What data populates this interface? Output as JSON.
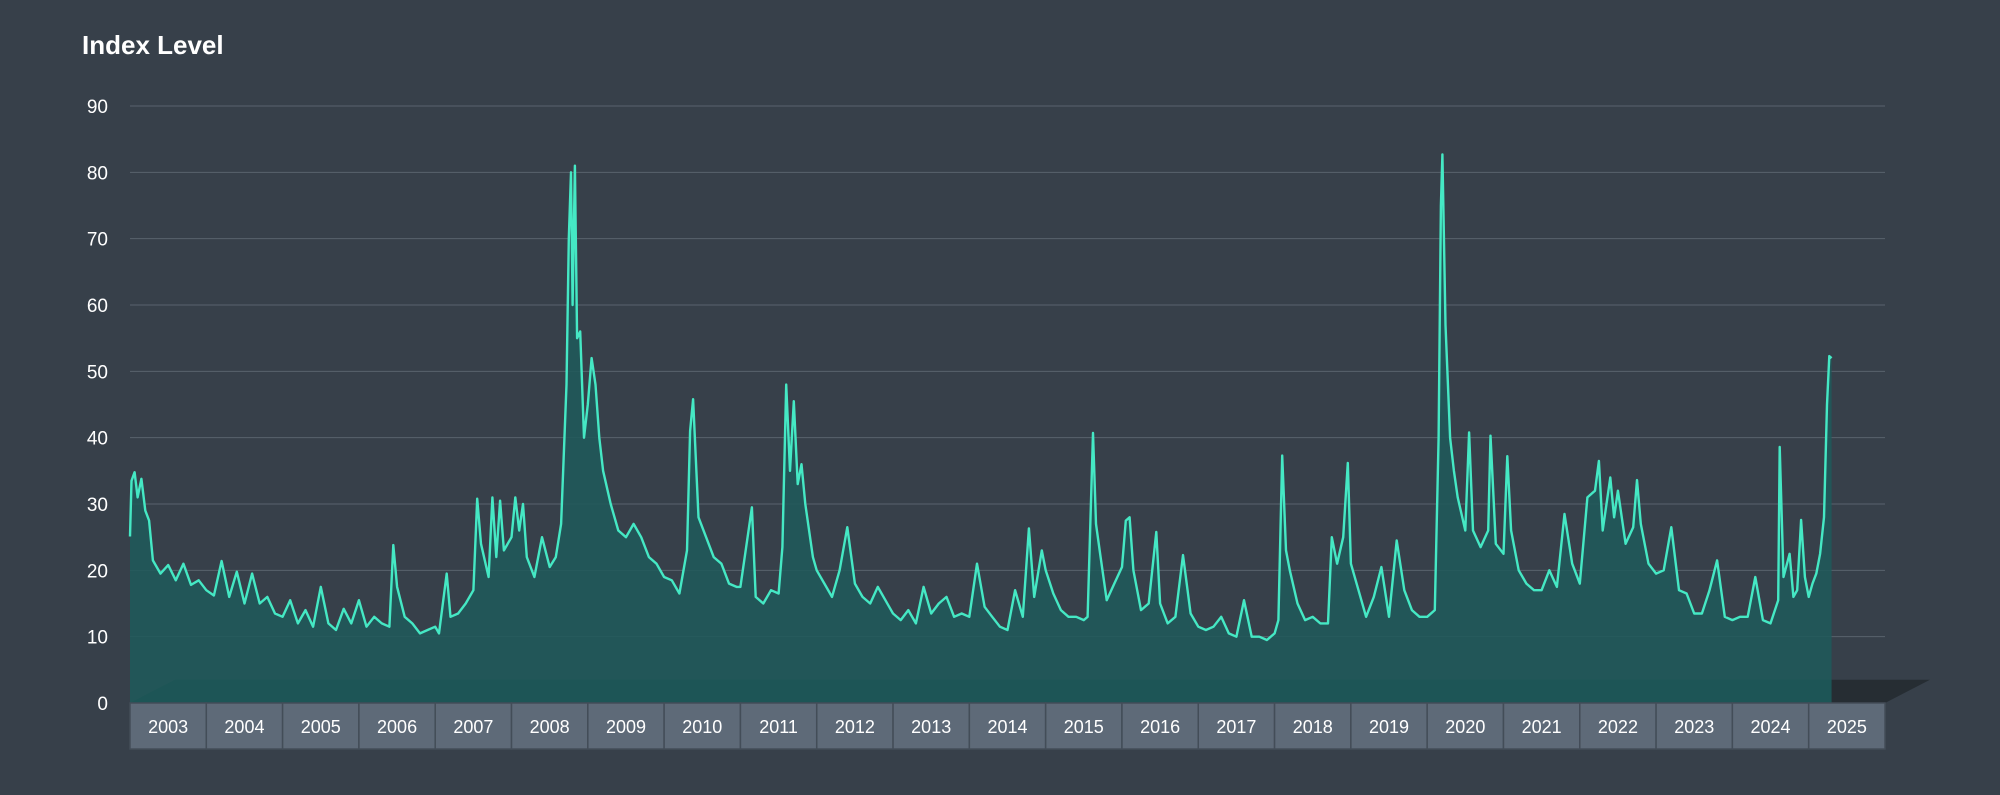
{
  "chart_data": {
    "type": "area",
    "title": "Index Level",
    "xlabel": "",
    "ylabel": "",
    "ylim": [
      0,
      90
    ],
    "yticks": [
      0,
      10,
      20,
      30,
      40,
      50,
      60,
      70,
      80,
      90
    ],
    "xticks": [
      "2003",
      "2004",
      "2005",
      "2006",
      "2007",
      "2008",
      "2009",
      "2010",
      "2011",
      "2012",
      "2013",
      "2014",
      "2015",
      "2016",
      "2017",
      "2018",
      "2019",
      "2020",
      "2021",
      "2022",
      "2023",
      "2024",
      "2025"
    ],
    "grid": true,
    "legend": "none",
    "colors": {
      "background": "#37404a",
      "line": "#45e8c4",
      "area_fill": "#1f5a5a",
      "floor": "#173a3d",
      "grid": "#58626d",
      "axis_box": "#5e6a78",
      "axis_box_border": "#434d58",
      "text": "#ffffff"
    },
    "series": [
      {
        "values": [
          [
            2003.0,
            25.1
          ],
          [
            2003.02,
            33.5
          ],
          [
            2003.06,
            34.8
          ],
          [
            2003.1,
            31.0
          ],
          [
            2003.15,
            33.8
          ],
          [
            2003.2,
            29.0
          ],
          [
            2003.25,
            27.5
          ],
          [
            2003.3,
            21.5
          ],
          [
            2003.4,
            19.5
          ],
          [
            2003.5,
            20.8
          ],
          [
            2003.6,
            18.5
          ],
          [
            2003.7,
            21.0
          ],
          [
            2003.8,
            17.8
          ],
          [
            2003.9,
            18.5
          ],
          [
            2004.0,
            17.0
          ],
          [
            2004.1,
            16.2
          ],
          [
            2004.2,
            21.4
          ],
          [
            2004.3,
            16.0
          ],
          [
            2004.4,
            19.8
          ],
          [
            2004.5,
            15.0
          ],
          [
            2004.6,
            19.5
          ],
          [
            2004.7,
            15.0
          ],
          [
            2004.8,
            16.0
          ],
          [
            2004.9,
            13.5
          ],
          [
            2005.0,
            13.0
          ],
          [
            2005.1,
            15.5
          ],
          [
            2005.2,
            12.0
          ],
          [
            2005.3,
            14.0
          ],
          [
            2005.4,
            11.5
          ],
          [
            2005.5,
            17.5
          ],
          [
            2005.6,
            12.0
          ],
          [
            2005.7,
            11.0
          ],
          [
            2005.8,
            14.2
          ],
          [
            2005.9,
            12.0
          ],
          [
            2006.0,
            15.5
          ],
          [
            2006.1,
            11.5
          ],
          [
            2006.2,
            13.0
          ],
          [
            2006.3,
            12.0
          ],
          [
            2006.4,
            11.5
          ],
          [
            2006.45,
            23.8
          ],
          [
            2006.5,
            17.5
          ],
          [
            2006.6,
            13.0
          ],
          [
            2006.7,
            12.0
          ],
          [
            2006.8,
            10.5
          ],
          [
            2006.9,
            11.0
          ],
          [
            2007.0,
            11.5
          ],
          [
            2007.05,
            10.5
          ],
          [
            2007.15,
            19.5
          ],
          [
            2007.2,
            13.0
          ],
          [
            2007.3,
            13.5
          ],
          [
            2007.4,
            15.0
          ],
          [
            2007.5,
            17.0
          ],
          [
            2007.55,
            30.8
          ],
          [
            2007.6,
            24.0
          ],
          [
            2007.7,
            19.0
          ],
          [
            2007.75,
            31.0
          ],
          [
            2007.8,
            22.0
          ],
          [
            2007.85,
            30.5
          ],
          [
            2007.9,
            23.0
          ],
          [
            2008.0,
            25.0
          ],
          [
            2008.05,
            31.0
          ],
          [
            2008.1,
            26.0
          ],
          [
            2008.15,
            30.0
          ],
          [
            2008.2,
            22.0
          ],
          [
            2008.3,
            19.0
          ],
          [
            2008.4,
            25.0
          ],
          [
            2008.5,
            20.5
          ],
          [
            2008.58,
            22.0
          ],
          [
            2008.65,
            27.0
          ],
          [
            2008.72,
            48.0
          ],
          [
            2008.75,
            70.0
          ],
          [
            2008.78,
            80.0
          ],
          [
            2008.8,
            60.0
          ],
          [
            2008.83,
            81.0
          ],
          [
            2008.86,
            55.0
          ],
          [
            2008.9,
            56.0
          ],
          [
            2008.95,
            40.0
          ],
          [
            2009.0,
            45.0
          ],
          [
            2009.05,
            52.0
          ],
          [
            2009.1,
            48.0
          ],
          [
            2009.15,
            40.0
          ],
          [
            2009.2,
            35.0
          ],
          [
            2009.3,
            30.0
          ],
          [
            2009.4,
            26.0
          ],
          [
            2009.5,
            25.0
          ],
          [
            2009.6,
            27.0
          ],
          [
            2009.7,
            25.0
          ],
          [
            2009.8,
            22.0
          ],
          [
            2009.9,
            21.0
          ],
          [
            2010.0,
            19.0
          ],
          [
            2010.1,
            18.5
          ],
          [
            2010.2,
            16.5
          ],
          [
            2010.3,
            23.0
          ],
          [
            2010.34,
            41.0
          ],
          [
            2010.38,
            45.8
          ],
          [
            2010.45,
            28.0
          ],
          [
            2010.55,
            25.0
          ],
          [
            2010.65,
            22.0
          ],
          [
            2010.75,
            21.0
          ],
          [
            2010.85,
            18.0
          ],
          [
            2010.95,
            17.5
          ],
          [
            2011.0,
            17.5
          ],
          [
            2011.15,
            29.5
          ],
          [
            2011.2,
            16.0
          ],
          [
            2011.3,
            15.0
          ],
          [
            2011.4,
            17.0
          ],
          [
            2011.5,
            16.5
          ],
          [
            2011.55,
            23.5
          ],
          [
            2011.6,
            48.0
          ],
          [
            2011.65,
            35.0
          ],
          [
            2011.7,
            45.5
          ],
          [
            2011.75,
            33.0
          ],
          [
            2011.8,
            36.0
          ],
          [
            2011.85,
            30.0
          ],
          [
            2011.95,
            22.0
          ],
          [
            2012.0,
            20.0
          ],
          [
            2012.1,
            18.0
          ],
          [
            2012.2,
            16.0
          ],
          [
            2012.3,
            20.0
          ],
          [
            2012.4,
            26.5
          ],
          [
            2012.5,
            18.0
          ],
          [
            2012.6,
            16.0
          ],
          [
            2012.7,
            15.0
          ],
          [
            2012.8,
            17.5
          ],
          [
            2012.9,
            15.5
          ],
          [
            2013.0,
            13.5
          ],
          [
            2013.1,
            12.5
          ],
          [
            2013.2,
            14.0
          ],
          [
            2013.3,
            12.0
          ],
          [
            2013.4,
            17.5
          ],
          [
            2013.5,
            13.5
          ],
          [
            2013.6,
            15.0
          ],
          [
            2013.7,
            16.0
          ],
          [
            2013.8,
            13.0
          ],
          [
            2013.9,
            13.5
          ],
          [
            2014.0,
            13.0
          ],
          [
            2014.1,
            21.0
          ],
          [
            2014.2,
            14.5
          ],
          [
            2014.3,
            13.0
          ],
          [
            2014.4,
            11.5
          ],
          [
            2014.5,
            11.0
          ],
          [
            2014.6,
            17.0
          ],
          [
            2014.7,
            13.0
          ],
          [
            2014.78,
            26.3
          ],
          [
            2014.85,
            16.0
          ],
          [
            2014.95,
            23.0
          ],
          [
            2015.0,
            20.0
          ],
          [
            2015.1,
            16.5
          ],
          [
            2015.2,
            14.0
          ],
          [
            2015.3,
            13.0
          ],
          [
            2015.4,
            13.0
          ],
          [
            2015.5,
            12.5
          ],
          [
            2015.55,
            13.0
          ],
          [
            2015.62,
            40.7
          ],
          [
            2015.66,
            27.0
          ],
          [
            2015.72,
            22.0
          ],
          [
            2015.8,
            15.5
          ],
          [
            2015.9,
            18.0
          ],
          [
            2016.0,
            20.5
          ],
          [
            2016.05,
            27.5
          ],
          [
            2016.1,
            28.0
          ],
          [
            2016.15,
            20.0
          ],
          [
            2016.25,
            14.0
          ],
          [
            2016.35,
            15.0
          ],
          [
            2016.45,
            25.8
          ],
          [
            2016.5,
            15.0
          ],
          [
            2016.6,
            12.0
          ],
          [
            2016.7,
            13.0
          ],
          [
            2016.8,
            22.3
          ],
          [
            2016.9,
            13.5
          ],
          [
            2017.0,
            11.5
          ],
          [
            2017.1,
            11.0
          ],
          [
            2017.2,
            11.5
          ],
          [
            2017.3,
            13.0
          ],
          [
            2017.4,
            10.5
          ],
          [
            2017.5,
            10.0
          ],
          [
            2017.6,
            15.5
          ],
          [
            2017.7,
            10.0
          ],
          [
            2017.8,
            10.0
          ],
          [
            2017.9,
            9.5
          ],
          [
            2018.0,
            10.5
          ],
          [
            2018.05,
            12.5
          ],
          [
            2018.1,
            37.3
          ],
          [
            2018.15,
            23.0
          ],
          [
            2018.2,
            20.0
          ],
          [
            2018.3,
            15.0
          ],
          [
            2018.4,
            12.5
          ],
          [
            2018.5,
            13.0
          ],
          [
            2018.6,
            12.0
          ],
          [
            2018.7,
            12.0
          ],
          [
            2018.75,
            25.0
          ],
          [
            2018.82,
            21.0
          ],
          [
            2018.9,
            25.0
          ],
          [
            2018.96,
            36.2
          ],
          [
            2019.0,
            21.0
          ],
          [
            2019.1,
            17.0
          ],
          [
            2019.2,
            13.0
          ],
          [
            2019.3,
            16.0
          ],
          [
            2019.4,
            20.5
          ],
          [
            2019.5,
            13.0
          ],
          [
            2019.6,
            24.5
          ],
          [
            2019.7,
            17.0
          ],
          [
            2019.8,
            14.0
          ],
          [
            2019.9,
            13.0
          ],
          [
            2020.0,
            13.0
          ],
          [
            2020.1,
            14.0
          ],
          [
            2020.15,
            40.0
          ],
          [
            2020.18,
            75.0
          ],
          [
            2020.2,
            82.7
          ],
          [
            2020.24,
            57.0
          ],
          [
            2020.3,
            40.0
          ],
          [
            2020.35,
            35.0
          ],
          [
            2020.4,
            31.0
          ],
          [
            2020.5,
            26.0
          ],
          [
            2020.55,
            40.8
          ],
          [
            2020.6,
            26.0
          ],
          [
            2020.7,
            23.5
          ],
          [
            2020.8,
            26.0
          ],
          [
            2020.83,
            40.3
          ],
          [
            2020.9,
            24.0
          ],
          [
            2021.0,
            22.5
          ],
          [
            2021.05,
            37.2
          ],
          [
            2021.1,
            26.0
          ],
          [
            2021.2,
            20.0
          ],
          [
            2021.3,
            18.0
          ],
          [
            2021.4,
            17.0
          ],
          [
            2021.5,
            17.0
          ],
          [
            2021.6,
            20.0
          ],
          [
            2021.7,
            17.5
          ],
          [
            2021.8,
            28.5
          ],
          [
            2021.9,
            21.0
          ],
          [
            2022.0,
            18.0
          ],
          [
            2022.1,
            31.0
          ],
          [
            2022.2,
            32.0
          ],
          [
            2022.25,
            36.5
          ],
          [
            2022.3,
            26.0
          ],
          [
            2022.4,
            34.0
          ],
          [
            2022.45,
            28.0
          ],
          [
            2022.5,
            32.0
          ],
          [
            2022.6,
            24.0
          ],
          [
            2022.7,
            26.5
          ],
          [
            2022.75,
            33.6
          ],
          [
            2022.8,
            27.0
          ],
          [
            2022.9,
            21.0
          ],
          [
            2023.0,
            19.5
          ],
          [
            2023.1,
            20.0
          ],
          [
            2023.2,
            26.5
          ],
          [
            2023.3,
            17.0
          ],
          [
            2023.4,
            16.5
          ],
          [
            2023.5,
            13.5
          ],
          [
            2023.6,
            13.5
          ],
          [
            2023.7,
            17.0
          ],
          [
            2023.8,
            21.5
          ],
          [
            2023.9,
            13.0
          ],
          [
            2024.0,
            12.5
          ],
          [
            2024.1,
            13.0
          ],
          [
            2024.2,
            13.0
          ],
          [
            2024.3,
            19.0
          ],
          [
            2024.4,
            12.5
          ],
          [
            2024.5,
            12.0
          ],
          [
            2024.6,
            15.5
          ],
          [
            2024.62,
            38.6
          ],
          [
            2024.67,
            19.0
          ],
          [
            2024.75,
            22.5
          ],
          [
            2024.8,
            16.0
          ],
          [
            2024.85,
            17.0
          ],
          [
            2024.9,
            27.6
          ],
          [
            2024.95,
            19.0
          ],
          [
            2025.0,
            16.0
          ],
          [
            2025.05,
            18.0
          ],
          [
            2025.1,
            19.5
          ],
          [
            2025.15,
            22.5
          ],
          [
            2025.2,
            28.0
          ],
          [
            2025.24,
            45.0
          ],
          [
            2025.27,
            52.3
          ],
          [
            2025.3,
            52.0
          ]
        ]
      }
    ]
  }
}
